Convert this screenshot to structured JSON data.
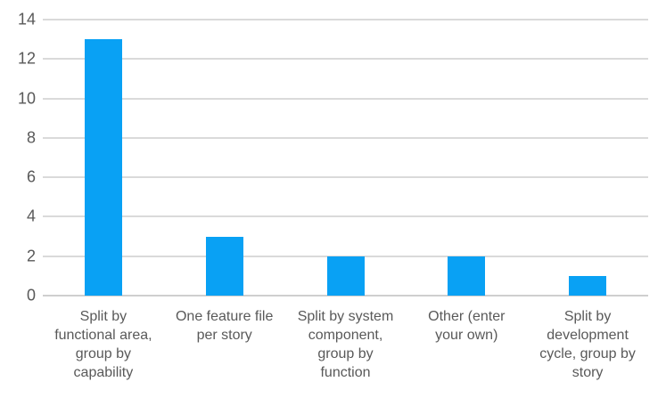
{
  "chart_data": {
    "type": "bar",
    "categories": [
      "Split by functional area, group by capability",
      "One feature file per story",
      "Split by system component, group by function",
      "Other (enter your own)",
      "Split by development cycle, group by story"
    ],
    "category_lines": [
      [
        "Split by",
        "functional area,",
        "group by",
        "capability"
      ],
      [
        "One feature file",
        "per story"
      ],
      [
        "Split by system",
        "component,",
        "group by",
        "function"
      ],
      [
        "Other (enter",
        "your own)"
      ],
      [
        "Split by",
        "development",
        "cycle, group by",
        "story"
      ]
    ],
    "values": [
      13,
      3,
      2,
      2,
      1
    ],
    "title": "",
    "xlabel": "",
    "ylabel": "",
    "ylim": [
      0,
      14
    ],
    "yticks": [
      0,
      2,
      4,
      6,
      8,
      10,
      12,
      14
    ],
    "grid": true,
    "legend": false,
    "colors": {
      "bar": "#09a1f4",
      "gridline": "#dadada",
      "axis_baseline": "#cfcfcf",
      "tick_label": "#595959",
      "background": "#ffffff"
    }
  }
}
